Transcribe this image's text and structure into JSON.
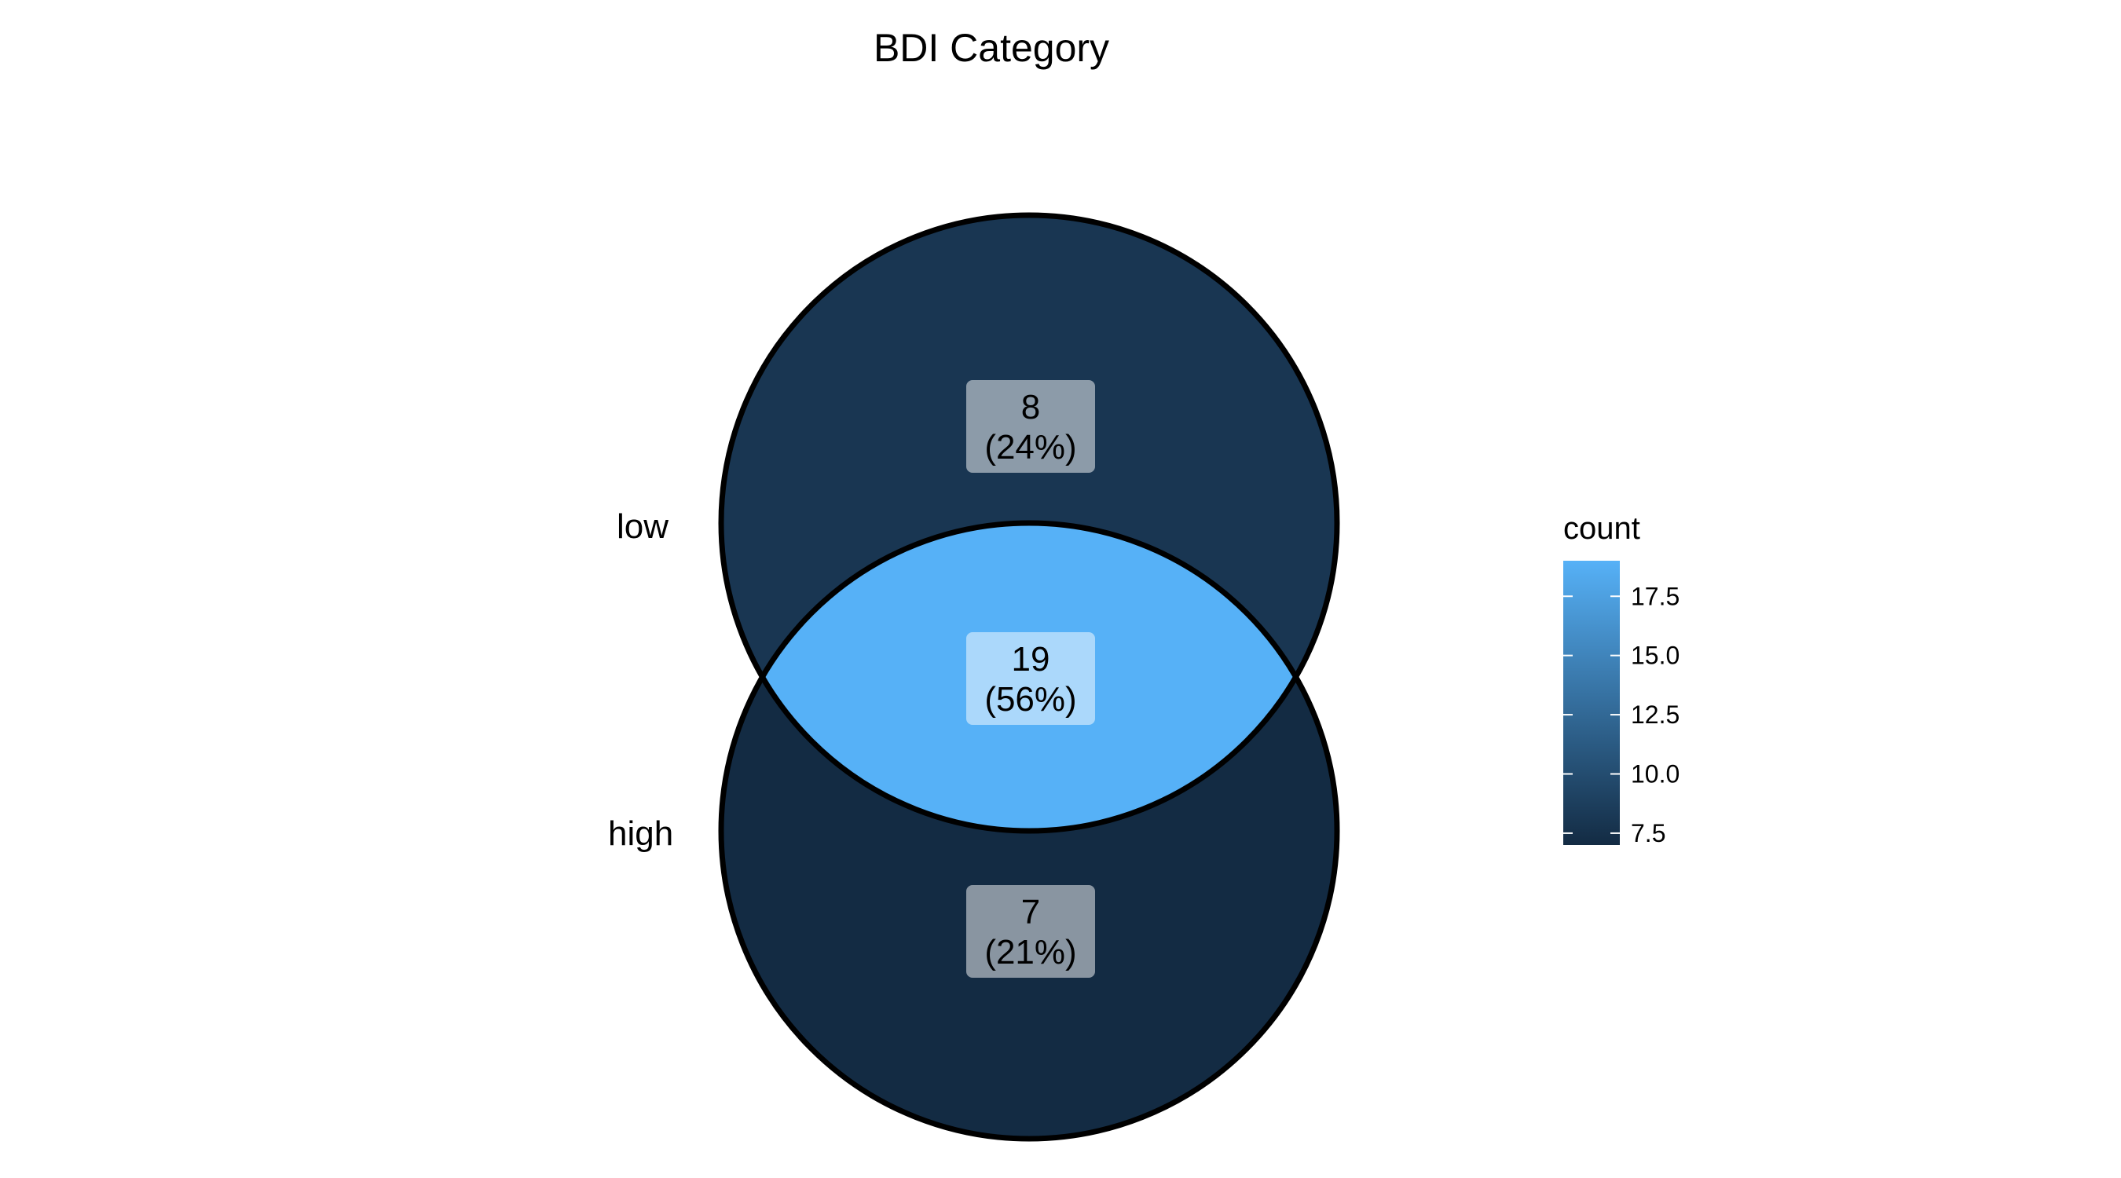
{
  "title": "BDI Category",
  "sets": [
    {
      "name": "low"
    },
    {
      "name": "high"
    }
  ],
  "regions": [
    {
      "id": "low-only",
      "count": "8",
      "percent": "(24%)",
      "value": 8
    },
    {
      "id": "intersection",
      "count": "19",
      "percent": "(56%)",
      "value": 19
    },
    {
      "id": "high-only",
      "count": "7",
      "percent": "(21%)",
      "value": 7
    }
  ],
  "legend": {
    "title": "count",
    "min": 7,
    "max": 19,
    "low_color": "#132B43",
    "high_color": "#56B1F7",
    "ticks": [
      {
        "value": 7.5,
        "label": "7.5"
      },
      {
        "value": 10.0,
        "label": "10.0"
      },
      {
        "value": 12.5,
        "label": "12.5"
      },
      {
        "value": 15.0,
        "label": "15.0"
      },
      {
        "value": 17.5,
        "label": "17.5"
      }
    ]
  },
  "colors": {
    "outline": "#000000",
    "label_box": "#ffffff"
  }
}
